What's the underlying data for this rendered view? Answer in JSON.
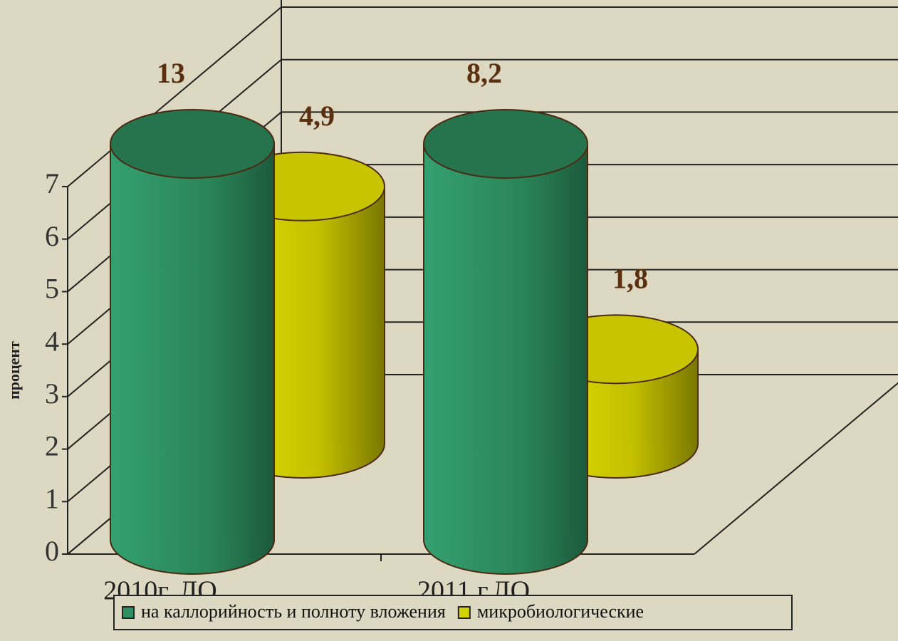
{
  "chart_data": {
    "type": "bar3d",
    "y_label": "процент",
    "categories": [
      "2010г. ЛО",
      "2011 г.ЛО"
    ],
    "series": [
      {
        "name": "на каллорийность и полноту вложения",
        "color": "#2e8f62",
        "values": [
          13,
          8.2
        ],
        "value_labels": [
          "13",
          "8,2"
        ]
      },
      {
        "name": "микробиологические",
        "color": "#d2d200",
        "values": [
          4.9,
          1.8
        ],
        "value_labels": [
          "4,9",
          "1,8"
        ]
      }
    ],
    "ylim": [
      0,
      7
    ],
    "yticks": [
      0,
      1,
      2,
      3,
      4,
      5,
      6,
      7
    ],
    "grid": true
  }
}
